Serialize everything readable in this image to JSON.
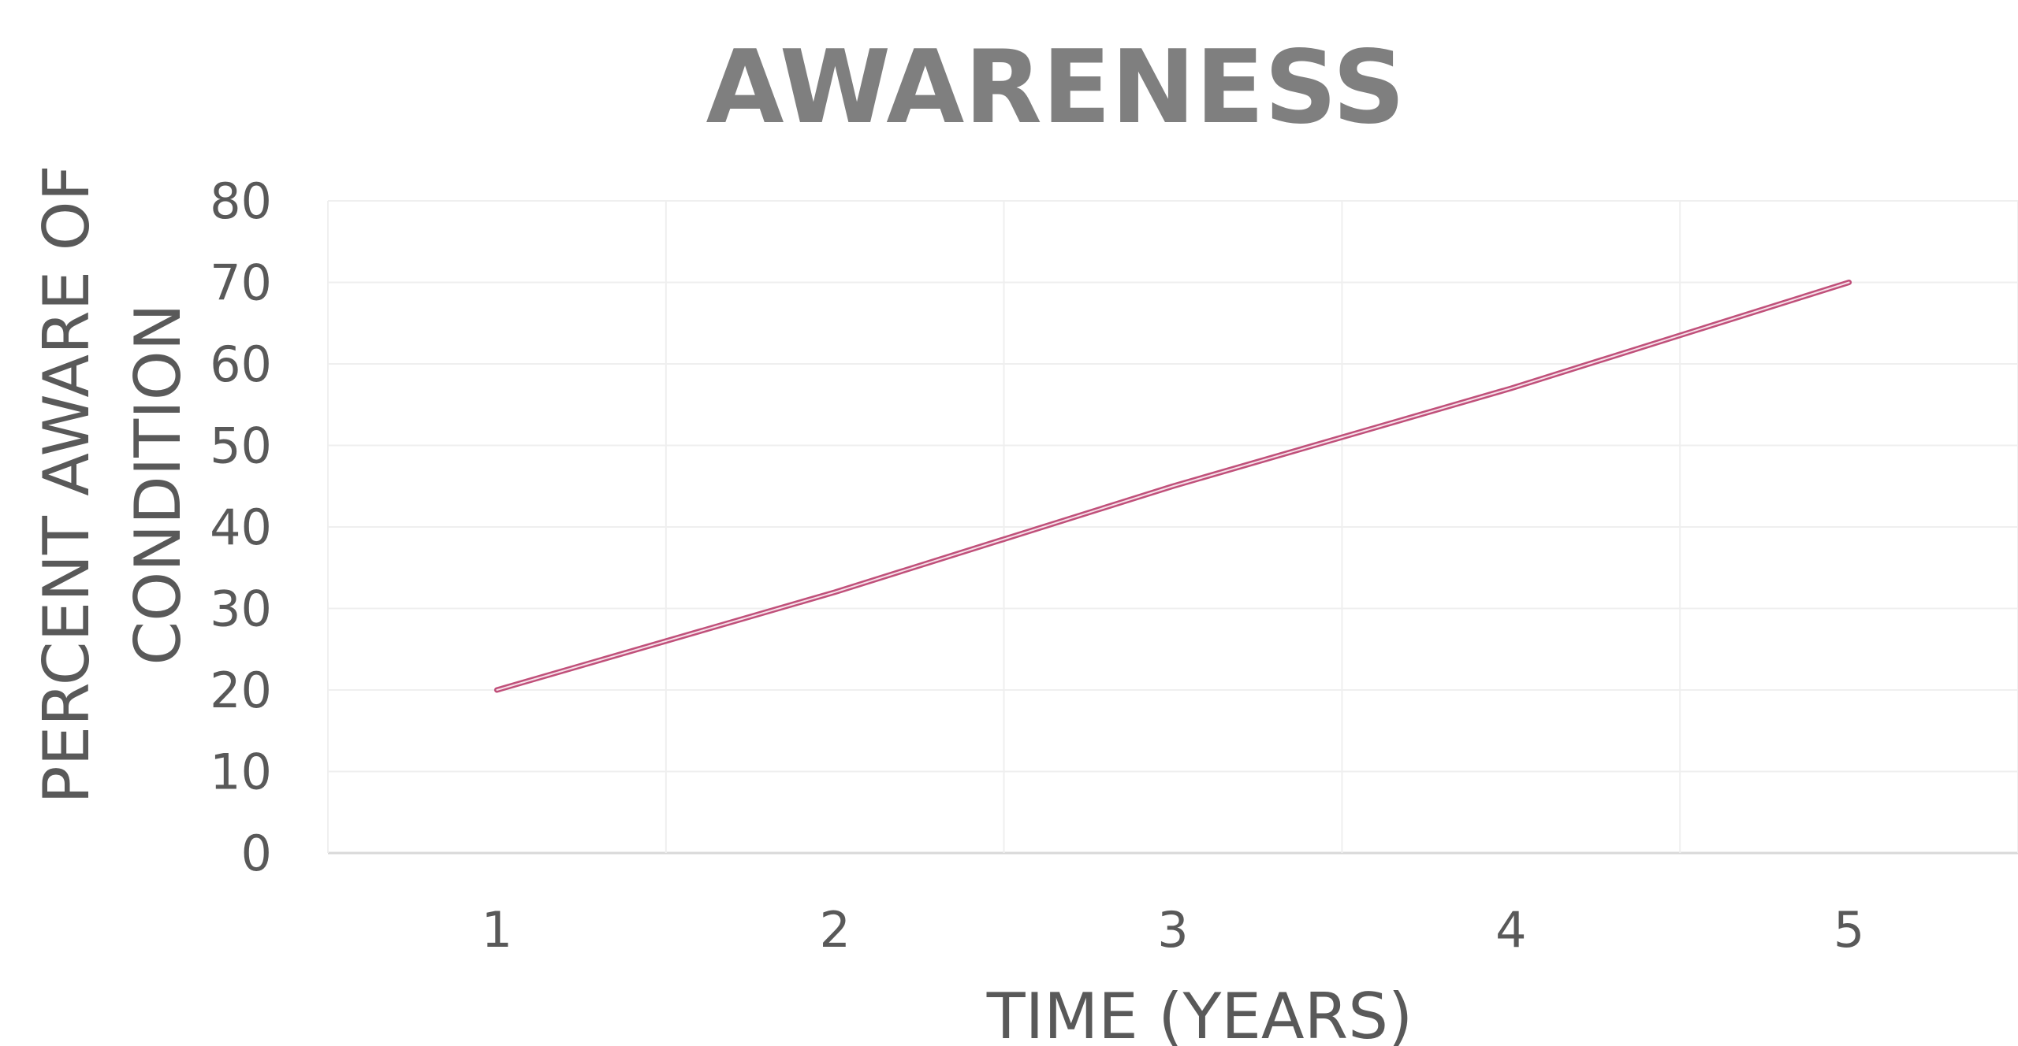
{
  "chart_data": {
    "type": "line",
    "title": "AWARENESS",
    "xlabel": "TIME (YEARS)",
    "ylabel_lines": [
      "PERCENT AWARE OF",
      "CONDITION"
    ],
    "x": [
      1,
      2,
      3,
      4,
      5
    ],
    "x_tick_labels": [
      "1",
      "2",
      "3",
      "4",
      "5"
    ],
    "y_tick_labels": [
      "0",
      "10",
      "20",
      "30",
      "40",
      "50",
      "60",
      "70",
      "80"
    ],
    "ylim": [
      0,
      80
    ],
    "y_step": 10,
    "grid": true,
    "series": [
      {
        "values": [
          20,
          32,
          45,
          57,
          70
        ],
        "color": "#c0507a"
      }
    ]
  }
}
